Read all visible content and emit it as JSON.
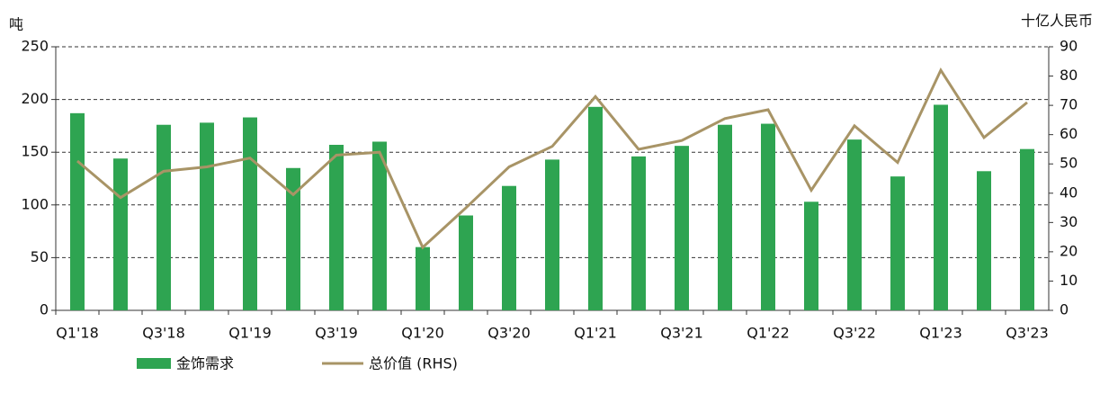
{
  "chart_data": {
    "type": "bar-line",
    "ylabel": "吨",
    "y2label": "十亿人民币",
    "categories": [
      "Q1'18",
      null,
      "Q3'18",
      null,
      "Q1'19",
      null,
      "Q3'19",
      null,
      "Q1'20",
      null,
      "Q3'20",
      null,
      "Q1'21",
      null,
      "Q3'21",
      null,
      "Q1'22",
      null,
      "Q3'22",
      null,
      "Q1'23",
      null,
      "Q3'23"
    ],
    "series": [
      {
        "name": "金饰需求",
        "type": "bar",
        "color": "#2ea451",
        "values": [
          187,
          144,
          176,
          178,
          183,
          135,
          157,
          160,
          60,
          90,
          118,
          143,
          193,
          146,
          156,
          176,
          177,
          103,
          162,
          127,
          195,
          132,
          153
        ]
      },
      {
        "name": "总价值 (RHS)",
        "type": "line",
        "axis": "y2",
        "color": "#a89466",
        "values": [
          51,
          38.5,
          47.5,
          49,
          52,
          39.5,
          53,
          54,
          21.5,
          35,
          49,
          56,
          73,
          55,
          58,
          65.5,
          68.5,
          41,
          63,
          50.5,
          82,
          59,
          71
        ]
      }
    ],
    "ylim": [
      0,
      250
    ],
    "yticks": [
      0,
      50,
      100,
      150,
      200,
      250
    ],
    "y2lim": [
      0,
      90
    ],
    "y2ticks": [
      0,
      10,
      20,
      30,
      40,
      50,
      60,
      70,
      80,
      90
    ],
    "grid": true,
    "legend": "bottom"
  }
}
